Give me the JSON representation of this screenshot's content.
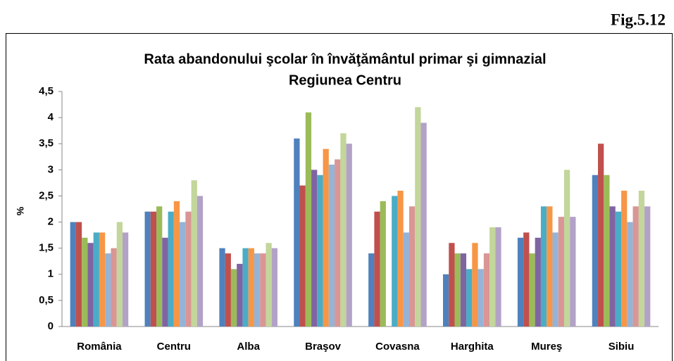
{
  "figure": "Fig.5.12",
  "chart_data": {
    "type": "bar",
    "title": "Rata abandonului şcolar în învăţământul primar şi gimnazial",
    "subtitle": "Regiunea Centru",
    "ylabel": "%",
    "categories": [
      "România",
      "Centru",
      "Alba",
      "Braşov",
      "Covasna",
      "Harghita",
      "Mureş",
      "Sibiu"
    ],
    "series": [
      {
        "color": "#4f81bd",
        "values": [
          2,
          2.2,
          1.5,
          3.6,
          1.4,
          1.0,
          1.7,
          2.9
        ]
      },
      {
        "color": "#c0504d",
        "values": [
          2,
          2.2,
          1.4,
          2.7,
          2.2,
          1.6,
          1.8,
          3.5
        ]
      },
      {
        "color": "#9bbb59",
        "values": [
          1.7,
          2.3,
          1.1,
          4.1,
          2.4,
          1.4,
          1.4,
          2.9
        ]
      },
      {
        "color": "#8064a2",
        "values": [
          1.6,
          1.7,
          1.2,
          3.0,
          null,
          1.4,
          1.7,
          2.3
        ]
      },
      {
        "color": "#4bacc6",
        "values": [
          1.8,
          2.2,
          1.5,
          2.9,
          2.5,
          1.1,
          2.3,
          2.2
        ]
      },
      {
        "color": "#f79646",
        "values": [
          1.8,
          2.4,
          1.5,
          3.4,
          2.6,
          1.6,
          2.3,
          2.6
        ]
      },
      {
        "color": "#95b3d7",
        "values": [
          1.4,
          2.0,
          1.4,
          3.1,
          1.8,
          1.1,
          1.8,
          2.0
        ]
      },
      {
        "color": "#d99694",
        "values": [
          1.5,
          2.2,
          1.4,
          3.2,
          2.3,
          1.4,
          2.1,
          2.3
        ]
      },
      {
        "color": "#c3d69b",
        "values": [
          2.0,
          2.8,
          1.6,
          3.7,
          4.2,
          1.9,
          3.0,
          2.6
        ]
      },
      {
        "color": "#b3a2c7",
        "values": [
          1.8,
          2.5,
          1.5,
          3.5,
          3.9,
          1.9,
          2.1,
          2.3
        ]
      }
    ],
    "ylim": [
      0,
      4.5
    ],
    "yticks": [
      0,
      {
        "value": 0.5,
        "label": "0,5"
      },
      1,
      {
        "value": 1.5,
        "label": "1,5"
      },
      2,
      {
        "value": 2.5,
        "label": "2,5"
      },
      3,
      {
        "value": 3.5,
        "label": "3,5"
      },
      4,
      {
        "value": 4.5,
        "label": "4,5"
      }
    ],
    "grid": false
  }
}
